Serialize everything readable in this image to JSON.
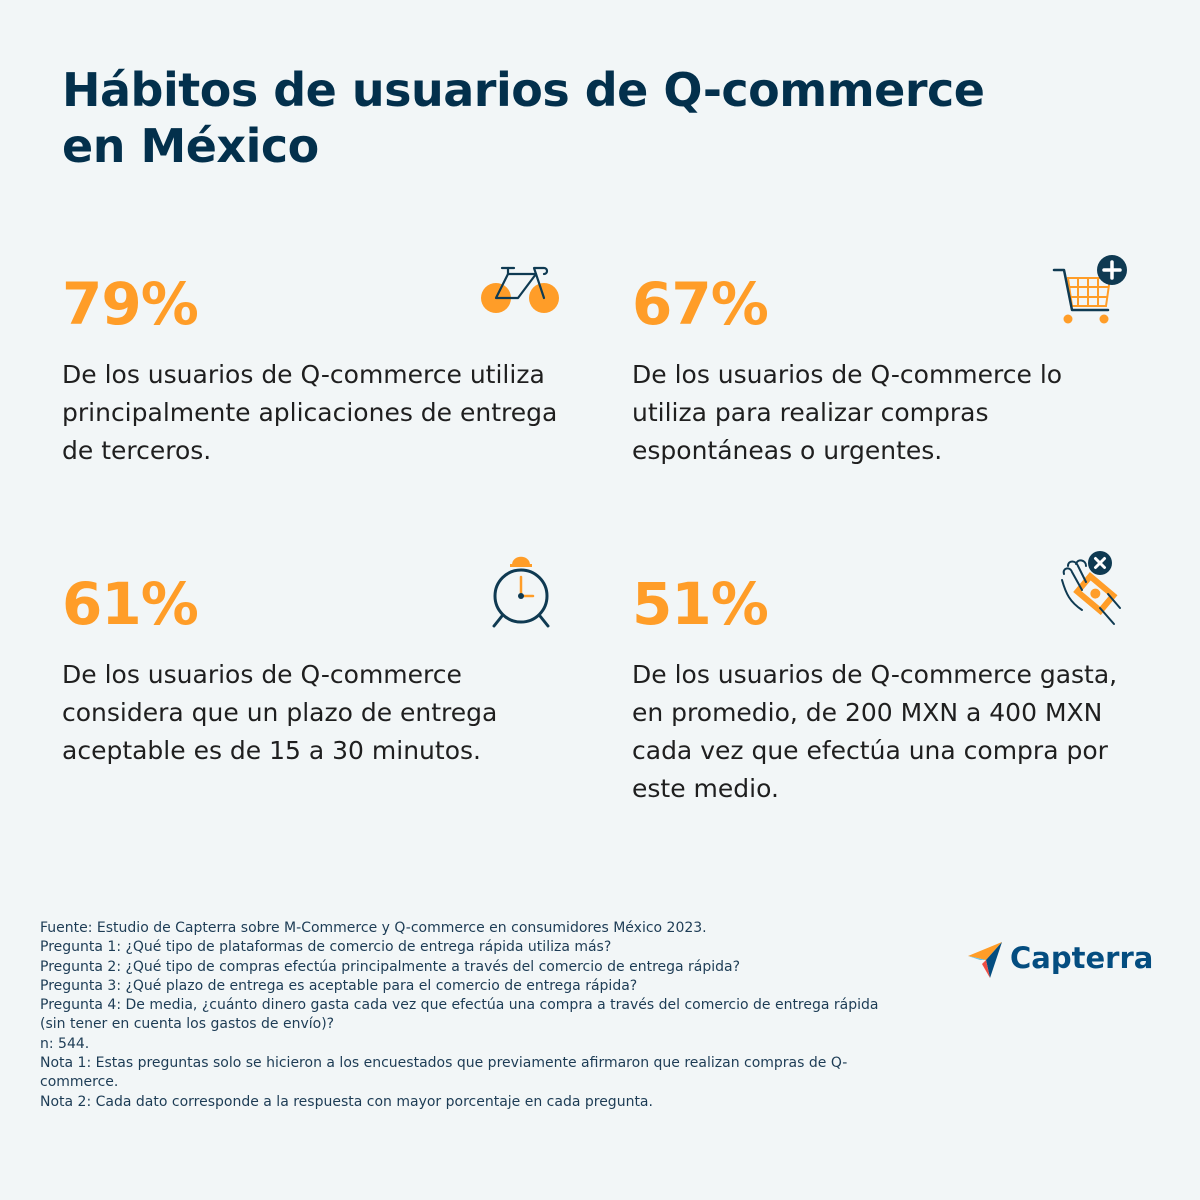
{
  "title": {
    "line1": "Hábitos de usuarios de Q-commerce",
    "line2": "en México"
  },
  "stats": [
    {
      "percent": "79%",
      "icon": "bicycle-icon",
      "lines": [
        "De los usuarios de Q-commerce utiliza",
        "principalmente aplicaciones de entrega",
        "de terceros."
      ]
    },
    {
      "percent": "67%",
      "icon": "shopping-cart-plus-icon",
      "lines": [
        "De los usuarios de Q-commerce lo",
        "utiliza para realizar compras",
        "espontáneas o urgentes."
      ]
    },
    {
      "percent": "61%",
      "icon": "alarm-clock-icon",
      "lines": [
        "De los usuarios de Q-commerce",
        "considera que un plazo de entrega",
        "aceptable es de 15 a 30 minutos."
      ]
    },
    {
      "percent": "51%",
      "icon": "hand-money-icon",
      "lines": [
        "De los usuarios de Q-commerce gasta,",
        "en promedio, de 200 MXN a 400 MXN",
        "cada vez que efectúa una compra por",
        "este medio."
      ]
    }
  ],
  "footer": {
    "lines": [
      "Fuente: Estudio de Capterra sobre M-Commerce y Q-commerce en consumidores México 2023.",
      "Pregunta 1: ¿Qué tipo de plataformas de comercio de entrega rápida utiliza más?",
      "Pregunta 2: ¿Qué tipo de compras efectúa principalmente a través del comercio de entrega rápida?",
      "Pregunta 3: ¿Qué plazo de entrega es aceptable para el comercio de entrega rápida?",
      "Pregunta 4: De media, ¿cuánto dinero gasta cada vez que efectúa una compra a través del comercio de entrega rápida",
      "(sin tener en cuenta los gastos de envío)?",
      "n: 544.",
      "Nota 1: Estas preguntas solo se hicieron a los encuestados que previamente afirmaron que realizan compras de Q-",
      "commerce.",
      "Nota 2: Cada dato corresponde a la respuesta con mayor porcentaje en cada pregunta."
    ]
  },
  "logo": {
    "text": "Capterra"
  },
  "colors": {
    "background": "#f2f6f7",
    "title": "#03304c",
    "accent": "#ff9d28",
    "text": "#1f1f1f",
    "icon_dark": "#0f3a52",
    "logo_text": "#044d80"
  }
}
